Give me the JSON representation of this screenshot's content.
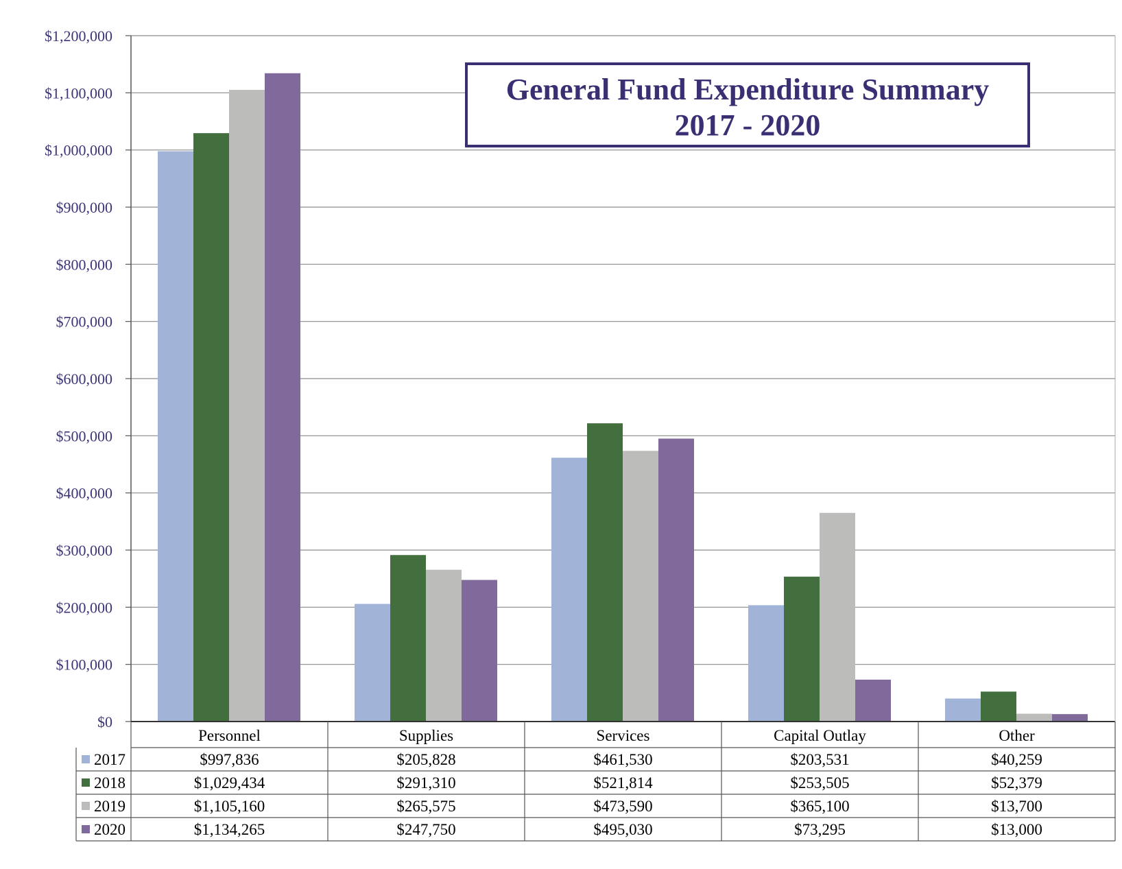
{
  "chart_data": {
    "type": "bar",
    "title": "General Fund Expenditure Summary",
    "subtitle": "2017 - 2020",
    "categories": [
      "Personnel",
      "Supplies",
      "Services",
      "Capital Outlay",
      "Other"
    ],
    "series": [
      {
        "name": "2017",
        "color": "#a1b3d6",
        "values": [
          997836,
          205828,
          461530,
          203531,
          40259
        ],
        "labels": [
          "$997,836",
          "$205,828",
          "$461,530",
          "$203,531",
          "$40,259"
        ]
      },
      {
        "name": "2018",
        "color": "#436f3e",
        "values": [
          1029434,
          291310,
          521814,
          253505,
          52379
        ],
        "labels": [
          "$1,029,434",
          "$291,310",
          "$521,814",
          "$253,505",
          "$52,379"
        ]
      },
      {
        "name": "2019",
        "color": "#bcbcba",
        "values": [
          1105160,
          265575,
          473590,
          365100,
          13700
        ],
        "labels": [
          "$1,105,160",
          "$265,575",
          "$473,590",
          "$365,100",
          "$13,700"
        ]
      },
      {
        "name": "2020",
        "color": "#7f6a9b",
        "values": [
          1134265,
          247750,
          495030,
          73295,
          13000
        ],
        "labels": [
          "$1,134,265",
          "$247,750",
          "$495,030",
          "$73,295",
          "$13,000"
        ]
      }
    ],
    "yticks": [
      "$0",
      "$100,000",
      "$200,000",
      "$300,000",
      "$400,000",
      "$500,000",
      "$600,000",
      "$700,000",
      "$800,000",
      "$900,000",
      "$1,000,000",
      "$1,100,000",
      "$1,200,000"
    ],
    "ylim": [
      0,
      1200000
    ],
    "grid": true,
    "legend": "data-table"
  }
}
